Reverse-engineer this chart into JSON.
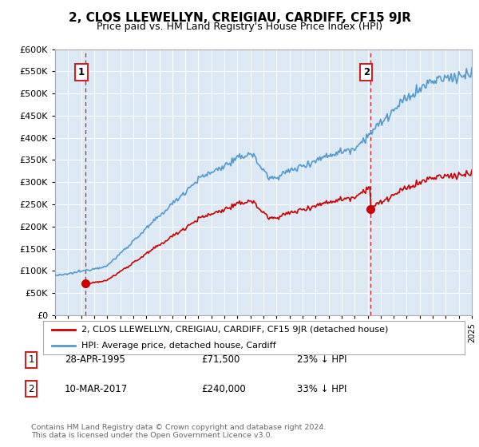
{
  "title": "2, CLOS LLEWELLYN, CREIGIAU, CARDIFF, CF15 9JR",
  "subtitle": "Price paid vs. HM Land Registry's House Price Index (HPI)",
  "ylim": [
    0,
    600000
  ],
  "yticks": [
    0,
    50000,
    100000,
    150000,
    200000,
    250000,
    300000,
    350000,
    400000,
    450000,
    500000,
    550000,
    600000
  ],
  "ytick_labels": [
    "£0",
    "£50K",
    "£100K",
    "£150K",
    "£200K",
    "£250K",
    "£300K",
    "£350K",
    "£400K",
    "£450K",
    "£500K",
    "£550K",
    "£600K"
  ],
  "plot_bg_color": "#dce9f5",
  "line1_color": "#cc0000",
  "line2_color": "#5599cc",
  "transaction1_year": 1995.32,
  "transaction1_price": 71500,
  "transaction2_year": 2017.19,
  "transaction2_price": 240000,
  "legend_label1": "2, CLOS LLEWELLYN, CREIGIAU, CARDIFF, CF15 9JR (detached house)",
  "legend_label2": "HPI: Average price, detached house, Cardiff",
  "footnote": "Contains HM Land Registry data © Crown copyright and database right 2024.\nThis data is licensed under the Open Government Licence v3.0."
}
